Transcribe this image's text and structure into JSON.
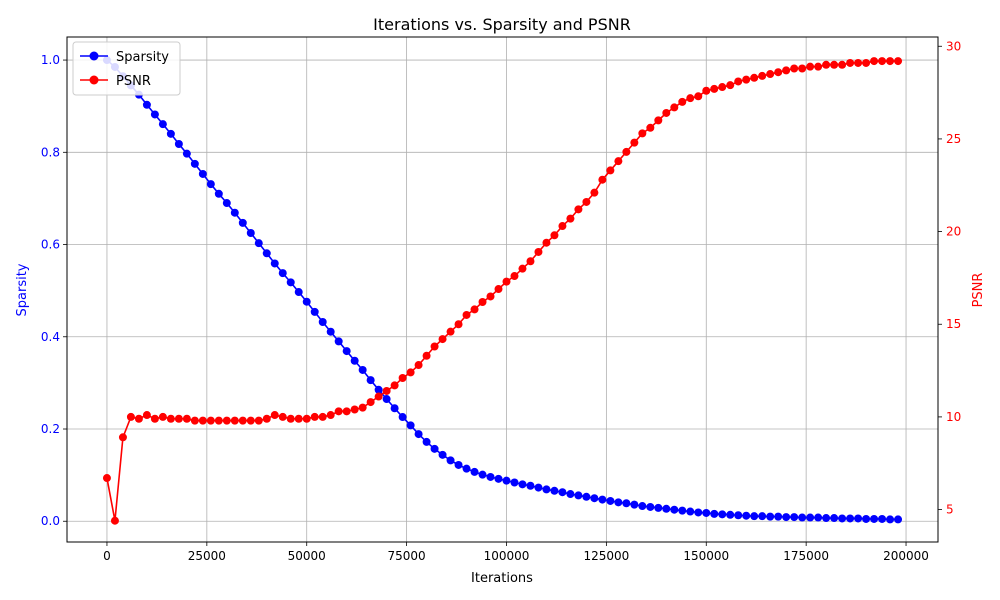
{
  "chart_data": {
    "type": "line",
    "title": "Iterations vs. Sparsity and PSNR",
    "xlabel": "Iterations",
    "ylabel_left": "Sparsity",
    "ylabel_right": "PSNR",
    "xlim": [
      -10000,
      208000
    ],
    "ylim_left": [
      -0.045,
      1.05
    ],
    "ylim_right": [
      3.25,
      30.5
    ],
    "x_ticks": [
      0,
      25000,
      50000,
      75000,
      100000,
      125000,
      150000,
      175000,
      200000
    ],
    "y_left_ticks": [
      0.0,
      0.2,
      0.4,
      0.6,
      0.8,
      1.0
    ],
    "y_right_ticks": [
      5,
      10,
      15,
      20,
      25,
      30
    ],
    "grid": true,
    "legend_position": "upper-left",
    "colors": {
      "sparsity": "#0000ff",
      "psnr": "#ff0000",
      "axis_left": "#0000ff",
      "axis_right": "#ff0000"
    },
    "x": [
      0,
      2000,
      4000,
      6000,
      8000,
      10000,
      12000,
      14000,
      16000,
      18000,
      20000,
      22000,
      24000,
      26000,
      28000,
      30000,
      32000,
      34000,
      36000,
      38000,
      40000,
      42000,
      44000,
      46000,
      48000,
      50000,
      52000,
      54000,
      56000,
      58000,
      60000,
      62000,
      64000,
      66000,
      68000,
      70000,
      72000,
      74000,
      76000,
      78000,
      80000,
      82000,
      84000,
      86000,
      88000,
      90000,
      92000,
      94000,
      96000,
      98000,
      100000,
      102000,
      104000,
      106000,
      108000,
      110000,
      112000,
      114000,
      116000,
      118000,
      120000,
      122000,
      124000,
      126000,
      128000,
      130000,
      132000,
      134000,
      136000,
      138000,
      140000,
      142000,
      144000,
      146000,
      148000,
      150000,
      152000,
      154000,
      156000,
      158000,
      160000,
      162000,
      164000,
      166000,
      168000,
      170000,
      172000,
      174000,
      176000,
      178000,
      180000,
      182000,
      184000,
      186000,
      188000,
      190000,
      192000,
      194000,
      196000,
      198000
    ],
    "series": [
      {
        "name": "Sparsity",
        "axis": "left",
        "values": [
          1.0,
          0.985,
          0.965,
          0.945,
          0.925,
          0.903,
          0.882,
          0.861,
          0.84,
          0.818,
          0.797,
          0.775,
          0.753,
          0.731,
          0.71,
          0.69,
          0.669,
          0.647,
          0.625,
          0.603,
          0.581,
          0.559,
          0.538,
          0.518,
          0.497,
          0.476,
          0.454,
          0.432,
          0.411,
          0.39,
          0.369,
          0.348,
          0.328,
          0.306,
          0.285,
          0.265,
          0.245,
          0.226,
          0.208,
          0.189,
          0.172,
          0.157,
          0.144,
          0.132,
          0.122,
          0.114,
          0.107,
          0.101,
          0.096,
          0.092,
          0.088,
          0.084,
          0.08,
          0.077,
          0.073,
          0.069,
          0.066,
          0.063,
          0.059,
          0.056,
          0.053,
          0.05,
          0.047,
          0.044,
          0.041,
          0.039,
          0.036,
          0.033,
          0.031,
          0.029,
          0.027,
          0.025,
          0.023,
          0.021,
          0.019,
          0.018,
          0.016,
          0.015,
          0.014,
          0.013,
          0.012,
          0.011,
          0.011,
          0.01,
          0.01,
          0.009,
          0.009,
          0.008,
          0.008,
          0.008,
          0.007,
          0.007,
          0.006,
          0.006,
          0.006,
          0.005,
          0.005,
          0.005,
          0.004,
          0.004
        ]
      },
      {
        "name": "PSNR",
        "axis": "right",
        "values": [
          6.7,
          4.4,
          8.9,
          10.0,
          9.9,
          10.1,
          9.9,
          10.0,
          9.9,
          9.9,
          9.9,
          9.8,
          9.8,
          9.8,
          9.8,
          9.8,
          9.8,
          9.8,
          9.8,
          9.8,
          9.9,
          10.1,
          10.0,
          9.9,
          9.9,
          9.9,
          10.0,
          10.0,
          10.1,
          10.3,
          10.3,
          10.4,
          10.5,
          10.8,
          11.1,
          11.4,
          11.7,
          12.1,
          12.4,
          12.8,
          13.3,
          13.8,
          14.2,
          14.6,
          15.0,
          15.5,
          15.8,
          16.2,
          16.5,
          16.9,
          17.3,
          17.6,
          18.0,
          18.4,
          18.9,
          19.4,
          19.8,
          20.3,
          20.7,
          21.2,
          21.6,
          22.1,
          22.8,
          23.3,
          23.8,
          24.3,
          24.8,
          25.3,
          25.6,
          26.0,
          26.4,
          26.7,
          27.0,
          27.2,
          27.3,
          27.6,
          27.7,
          27.8,
          27.9,
          28.1,
          28.2,
          28.3,
          28.4,
          28.5,
          28.6,
          28.7,
          28.8,
          28.8,
          28.9,
          28.9,
          29.0,
          29.0,
          29.0,
          29.1,
          29.1,
          29.1,
          29.2,
          29.2,
          29.2,
          29.2
        ]
      }
    ]
  }
}
